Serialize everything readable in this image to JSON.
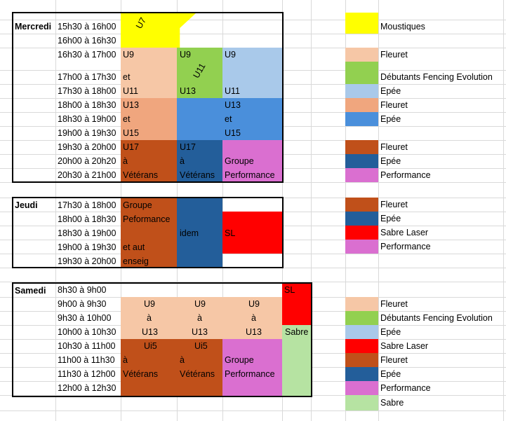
{
  "colors": {
    "yellow": "#ffff00",
    "peach": "#f6c7a6",
    "peach_dark": "#f0a67e",
    "green": "#92d050",
    "light_blue": "#a9c9ea",
    "blue": "#4a8fdb",
    "brown": "#c0501a",
    "navy": "#235e9a",
    "pink": "#da6fd0",
    "red": "#ff0000",
    "light_green": "#b6e3a2"
  },
  "mercredi": {
    "day": "Mercredi",
    "times": [
      "15h30 à 16h00",
      "16h00 à 16h30",
      "16h30 à 17h00",
      "17h00 à 17h30",
      "17h30 à 18h00",
      "18h00 à 18h30",
      "18h30 à 19h00",
      "19h00 à 19h30",
      "19h30 à 20h00",
      "20h00 à 20h20",
      "20h30 à 21h00"
    ],
    "u7": "U7",
    "u11_rot": "U11",
    "c1": [
      "U9",
      "et",
      "U11",
      "U13",
      "et",
      "U15",
      "U17",
      "à",
      "Vétérans"
    ],
    "c2": [
      "U9",
      "U13",
      "U17",
      "à",
      "Vétérans"
    ],
    "c3": [
      "U9",
      "U11",
      "U13",
      "et",
      "U15",
      "Groupe",
      "Performance"
    ]
  },
  "jeudi": {
    "day": "Jeudi",
    "times": [
      "17h30 à 18h00",
      "18h00 à 18h30",
      "18h30 à 19h00",
      "19h00 à 19h30",
      "19h30 à 20h00"
    ],
    "c1": [
      "Groupe",
      "Peformance",
      "et aut",
      "enseig"
    ],
    "c2": "idem",
    "c3": "SL"
  },
  "samedi": {
    "day": "Samedi",
    "times": [
      "8h30 à 9h00",
      "9h00 à 9h30",
      "9h30 à 10h00",
      "10h00 à 10h30",
      "10h30 à 11h00",
      "11h00 à 11h30",
      "11h30 à 12h00",
      "12h00 à 12h30"
    ],
    "sl": "SL",
    "sabre": "Sabre",
    "c1": [
      "U9",
      "à",
      "U13",
      "Ui5",
      "à",
      "Vétérans"
    ],
    "c2": [
      "U9",
      "à",
      "U13",
      "Ui5",
      "à",
      "Vétérans"
    ],
    "c3": [
      "U9",
      "à",
      "U13",
      "Groupe",
      "Performance"
    ]
  },
  "legend_mercredi": [
    "Moustiques",
    "Fleuret",
    "Débutants Fencing Evolution",
    "Epée",
    "Fleuret",
    "Epée",
    "Fleuret",
    "Epée",
    "Performance"
  ],
  "legend_jeudi": [
    "Fleuret",
    "Epée",
    "Sabre Laser",
    "Performance"
  ],
  "legend_samedi": [
    "Fleuret",
    "Débutants Fencing Evolution",
    "Epée",
    "Sabre Laser",
    "Fleuret",
    "Epée",
    "Performance",
    "Sabre"
  ]
}
